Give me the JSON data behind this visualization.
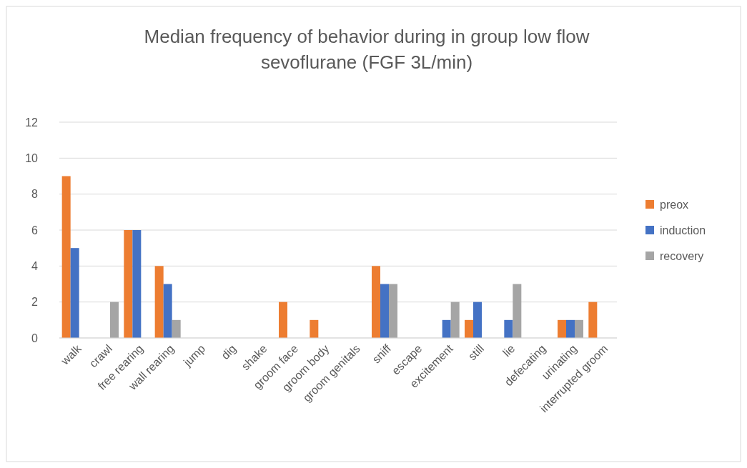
{
  "chart_data": {
    "type": "bar",
    "title": "Median frequency of behavior during in group low flow sevoflurane (FGF 3L/min)",
    "categories": [
      "walk",
      "crawl",
      "free rearing",
      "wall rearing",
      "jump",
      "dig",
      "shake",
      "groom face",
      "groom body",
      "groom genitals",
      "sniff",
      "escape",
      "excitement",
      "still",
      "lie",
      "defecating",
      "urinating",
      "interrupted groom"
    ],
    "series": [
      {
        "name": "preox",
        "color": "#ed7d31",
        "values": [
          9,
          0,
          6,
          4,
          0,
          0,
          0,
          2,
          1,
          0,
          4,
          0,
          0,
          1,
          0,
          0,
          1,
          2
        ]
      },
      {
        "name": "induction",
        "color": "#4472c4",
        "values": [
          5,
          0,
          6,
          3,
          0,
          0,
          0,
          0,
          0,
          0,
          3,
          0,
          1,
          2,
          1,
          0,
          1,
          0
        ]
      },
      {
        "name": "recovery",
        "color": "#a5a5a5",
        "values": [
          0,
          2,
          0,
          1,
          0,
          0,
          0,
          0,
          0,
          0,
          3,
          0,
          2,
          0,
          3,
          0,
          1,
          0
        ]
      }
    ],
    "ylim": [
      0,
      12
    ],
    "yticks": [
      0,
      2,
      4,
      6,
      8,
      10,
      12
    ],
    "grid": "y",
    "legend": "right"
  }
}
